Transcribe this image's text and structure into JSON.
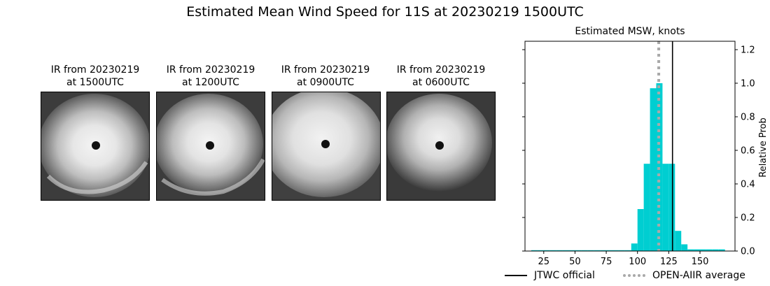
{
  "suptitle": "Estimated Mean Wind Speed for 11S at 20230219 1500UTC",
  "ir_panels": [
    {
      "line1": "IR from 20230219",
      "line2": "at 1500UTC"
    },
    {
      "line1": "IR from 20230219",
      "line2": "at 1200UTC"
    },
    {
      "line1": "IR from 20230219",
      "line2": "at 0900UTC"
    },
    {
      "line1": "IR from 20230219",
      "line2": "at 0600UTC"
    }
  ],
  "chart_data": {
    "type": "bar",
    "title": "Estimated MSW, knots",
    "ylabel": "Relative Prob",
    "xlabel": "",
    "xlim": [
      10,
      178
    ],
    "ylim": [
      0,
      1.25
    ],
    "xticks": [
      25,
      50,
      75,
      100,
      125,
      150
    ],
    "yticks": [
      0.0,
      0.2,
      0.4,
      0.6,
      0.8,
      1.0,
      1.2
    ],
    "bar_width": 5,
    "bin_starts": [
      15,
      20,
      25,
      30,
      35,
      40,
      45,
      50,
      55,
      60,
      65,
      70,
      75,
      80,
      85,
      90,
      95,
      100,
      105,
      110,
      115,
      120,
      125,
      130,
      135,
      140,
      145,
      150,
      155,
      160,
      165
    ],
    "values": [
      0.005,
      0.005,
      0.005,
      0.005,
      0.005,
      0.005,
      0.005,
      0.005,
      0.005,
      0.005,
      0.005,
      0.005,
      0.005,
      0.005,
      0.005,
      0.005,
      0.045,
      0.25,
      0.52,
      0.97,
      1.0,
      0.52,
      0.52,
      0.12,
      0.04,
      0.01,
      0.01,
      0.01,
      0.01,
      0.01,
      0.01
    ],
    "color": "#00ced1",
    "jtwc_official": 128,
    "open_aiir_average": 117,
    "legend": [
      {
        "label": "JTWC official",
        "style": "solid",
        "color": "#000000"
      },
      {
        "label": "OPEN-AIIR average",
        "style": "dotted",
        "color": "#a9a9a9"
      }
    ],
    "legend_position": "bottom"
  }
}
